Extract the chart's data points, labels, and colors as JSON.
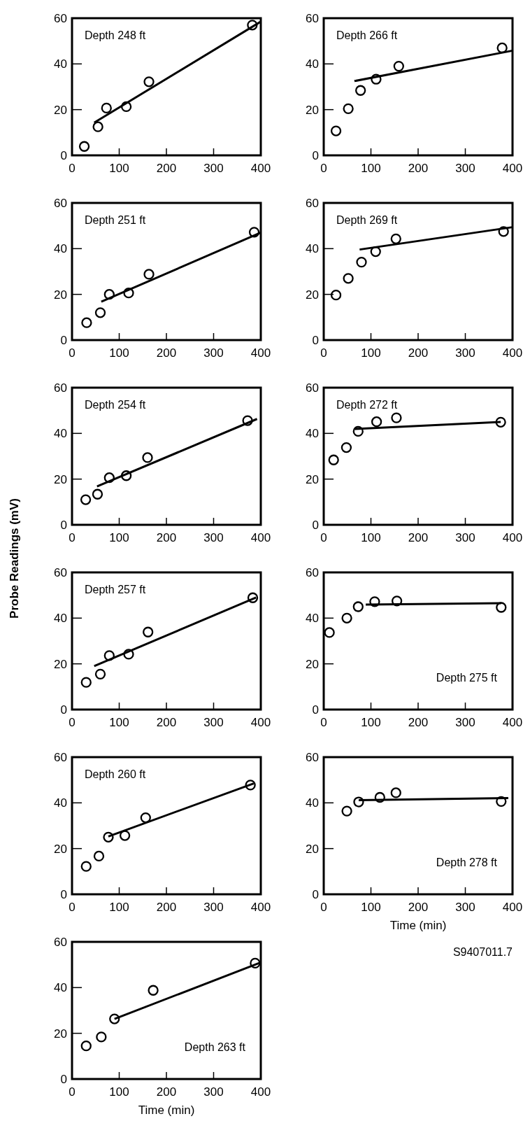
{
  "chart_data": [
    {
      "type": "scatter",
      "annotations": [
        "Depth 248 ft"
      ],
      "xlim": [
        0,
        400
      ],
      "ylim": [
        0,
        60
      ],
      "xticks": [
        0,
        100,
        200,
        300,
        400
      ],
      "yticks": [
        0,
        20,
        40,
        60
      ],
      "line_style": "solid",
      "series": [
        {
          "marker": "circle",
          "color": "#000000",
          "x": [
            26,
            55,
            73,
            115,
            163,
            382
          ],
          "values": [
            3.9,
            12.5,
            20.7,
            21.3,
            32.2,
            57
          ]
        },
        {
          "type": "line",
          "marker": "none",
          "color": "#000000",
          "x": [
            47,
            400
          ],
          "values": [
            14.3,
            58.5
          ]
        }
      ]
    },
    {
      "type": "scatter",
      "annotations": [
        "Depth 266 ft"
      ],
      "xlim": [
        0,
        400
      ],
      "ylim": [
        0,
        60
      ],
      "xticks": [
        0,
        100,
        200,
        300,
        400
      ],
      "yticks": [
        0,
        20,
        40,
        60
      ],
      "line_style": "solid",
      "series": [
        {
          "marker": "circle",
          "color": "#000000",
          "x": [
            26,
            52,
            78,
            111,
            159,
            378
          ],
          "values": [
            10.7,
            20.4,
            28.4,
            33.3,
            39,
            47
          ]
        },
        {
          "type": "line",
          "marker": "none",
          "color": "#000000",
          "x": [
            65,
            400
          ],
          "values": [
            32.5,
            45.8
          ]
        }
      ]
    },
    {
      "type": "scatter",
      "annotations": [
        "Depth 251 ft"
      ],
      "xlim": [
        0,
        400
      ],
      "ylim": [
        0,
        60
      ],
      "xticks": [
        0,
        100,
        200,
        300,
        400
      ],
      "yticks": [
        0,
        20,
        40,
        60
      ],
      "line_style": "solid",
      "series": [
        {
          "marker": "circle",
          "color": "#000000",
          "x": [
            31,
            60,
            79,
            120,
            163,
            386
          ],
          "values": [
            7.6,
            12,
            20,
            20.6,
            28.8,
            47.2
          ]
        },
        {
          "type": "line",
          "marker": "none",
          "color": "#000000",
          "x": [
            62,
            400
          ],
          "values": [
            16.8,
            47
          ]
        }
      ]
    },
    {
      "type": "scatter",
      "annotations": [
        "Depth 269 ft"
      ],
      "xlim": [
        0,
        400
      ],
      "ylim": [
        0,
        60
      ],
      "xticks": [
        0,
        100,
        200,
        300,
        400
      ],
      "yticks": [
        0,
        20,
        40,
        60
      ],
      "line_style": "solid",
      "series": [
        {
          "marker": "circle",
          "color": "#000000",
          "x": [
            26,
            52,
            80,
            110,
            153,
            381
          ],
          "values": [
            19.7,
            27,
            34.1,
            38.7,
            44.3,
            47.5
          ]
        },
        {
          "type": "line",
          "marker": "none",
          "color": "#000000",
          "x": [
            76,
            400
          ],
          "values": [
            39.6,
            49.4
          ]
        }
      ]
    },
    {
      "type": "scatter",
      "annotations": [
        "Depth 254 ft"
      ],
      "xlim": [
        0,
        400
      ],
      "ylim": [
        0,
        60
      ],
      "xticks": [
        0,
        100,
        200,
        300,
        400
      ],
      "yticks": [
        0,
        20,
        40,
        60
      ],
      "line_style": "solid",
      "series": [
        {
          "marker": "circle",
          "color": "#000000",
          "x": [
            29,
            54,
            79,
            115,
            160,
            372
          ],
          "values": [
            11,
            13.4,
            20.6,
            21.5,
            29.4,
            45.6
          ]
        },
        {
          "type": "line",
          "marker": "none",
          "color": "#000000",
          "x": [
            53,
            392
          ],
          "values": [
            16.8,
            46.3
          ]
        }
      ]
    },
    {
      "type": "scatter",
      "annotations": [
        "Depth 272 ft"
      ],
      "xlim": [
        0,
        400
      ],
      "ylim": [
        0,
        60
      ],
      "xticks": [
        0,
        100,
        200,
        300,
        400
      ],
      "yticks": [
        0,
        20,
        40,
        60
      ],
      "line_style": "solid",
      "series": [
        {
          "marker": "circle",
          "color": "#000000",
          "x": [
            21,
            48,
            73,
            112,
            154,
            375
          ],
          "values": [
            28.4,
            33.8,
            40.9,
            45.1,
            46.8,
            44.9
          ]
        },
        {
          "type": "line",
          "marker": "none",
          "color": "#000000",
          "x": [
            66,
            375
          ],
          "values": [
            41.9,
            45
          ]
        }
      ]
    },
    {
      "type": "scatter",
      "ylabel": "Probe Readings (mV)",
      "annotations": [
        "Depth 257 ft"
      ],
      "xlim": [
        0,
        400
      ],
      "ylim": [
        0,
        60
      ],
      "xticks": [
        0,
        100,
        200,
        300,
        400
      ],
      "yticks": [
        0,
        20,
        40,
        60
      ],
      "line_style": "solid",
      "series": [
        {
          "marker": "circle",
          "color": "#000000",
          "x": [
            30,
            60,
            79,
            120,
            161,
            383
          ],
          "values": [
            11.9,
            15.5,
            23.6,
            24.2,
            33.9,
            48.9
          ]
        },
        {
          "type": "line",
          "marker": "none",
          "color": "#000000",
          "x": [
            47,
            390
          ],
          "values": [
            19,
            49
          ]
        }
      ]
    },
    {
      "type": "scatter",
      "annotations": [
        "Depth 275 ft"
      ],
      "xlim": [
        0,
        400
      ],
      "ylim": [
        0,
        60
      ],
      "xticks": [
        0,
        100,
        200,
        300,
        400
      ],
      "yticks": [
        0,
        20,
        40,
        60
      ],
      "line_style": "solid",
      "series": [
        {
          "marker": "circle",
          "color": "#000000",
          "x": [
            12,
            49,
            73,
            108,
            155,
            376
          ],
          "values": [
            33.7,
            40,
            45,
            47.2,
            47.5,
            44.7
          ]
        },
        {
          "type": "line",
          "marker": "none",
          "color": "#000000",
          "x": [
            89,
            376
          ],
          "values": [
            45.9,
            46.5
          ]
        }
      ]
    },
    {
      "type": "scatter",
      "annotations": [
        "Depth 260 ft"
      ],
      "xlim": [
        0,
        400
      ],
      "ylim": [
        0,
        60
      ],
      "xticks": [
        0,
        100,
        200,
        300,
        400
      ],
      "yticks": [
        0,
        20,
        40,
        60
      ],
      "line_style": "solid",
      "series": [
        {
          "marker": "circle",
          "color": "#000000",
          "x": [
            30,
            57,
            77,
            112,
            156,
            378
          ],
          "values": [
            12.2,
            16.7,
            25,
            25.7,
            33.5,
            47.8
          ]
        },
        {
          "type": "line",
          "marker": "none",
          "color": "#000000",
          "x": [
            77,
            385
          ],
          "values": [
            25.3,
            48.5
          ]
        }
      ]
    },
    {
      "type": "scatter",
      "xlabel": "Time (min)",
      "annotations": [
        "Depth 278 ft",
        "S9407011.7"
      ],
      "xlim": [
        0,
        400
      ],
      "ylim": [
        0,
        60
      ],
      "xticks": [
        0,
        100,
        200,
        300,
        400
      ],
      "yticks": [
        0,
        20,
        40,
        60
      ],
      "line_style": "solid",
      "series": [
        {
          "marker": "circle",
          "color": "#000000",
          "x": [
            49,
            74,
            119,
            153,
            376
          ],
          "values": [
            36.4,
            40.4,
            42.4,
            44.4,
            40.6
          ]
        },
        {
          "type": "line",
          "marker": "none",
          "color": "#000000",
          "x": [
            74,
            391
          ],
          "values": [
            41.2,
            42.1
          ]
        }
      ]
    },
    {
      "type": "scatter",
      "xlabel": "Time (min)",
      "annotations": [
        "Depth 263 ft"
      ],
      "xlim": [
        0,
        400
      ],
      "ylim": [
        0,
        60
      ],
      "xticks": [
        0,
        100,
        200,
        300,
        400
      ],
      "yticks": [
        0,
        20,
        40,
        60
      ],
      "line_style": "solid",
      "series": [
        {
          "marker": "circle",
          "color": "#000000",
          "x": [
            30,
            62,
            90,
            172,
            388
          ],
          "values": [
            14.5,
            18.4,
            26.3,
            38.8,
            50.7
          ]
        },
        {
          "type": "line",
          "marker": "none",
          "color": "#000000",
          "x": [
            90,
            400
          ],
          "values": [
            26.3,
            51
          ]
        }
      ]
    }
  ]
}
